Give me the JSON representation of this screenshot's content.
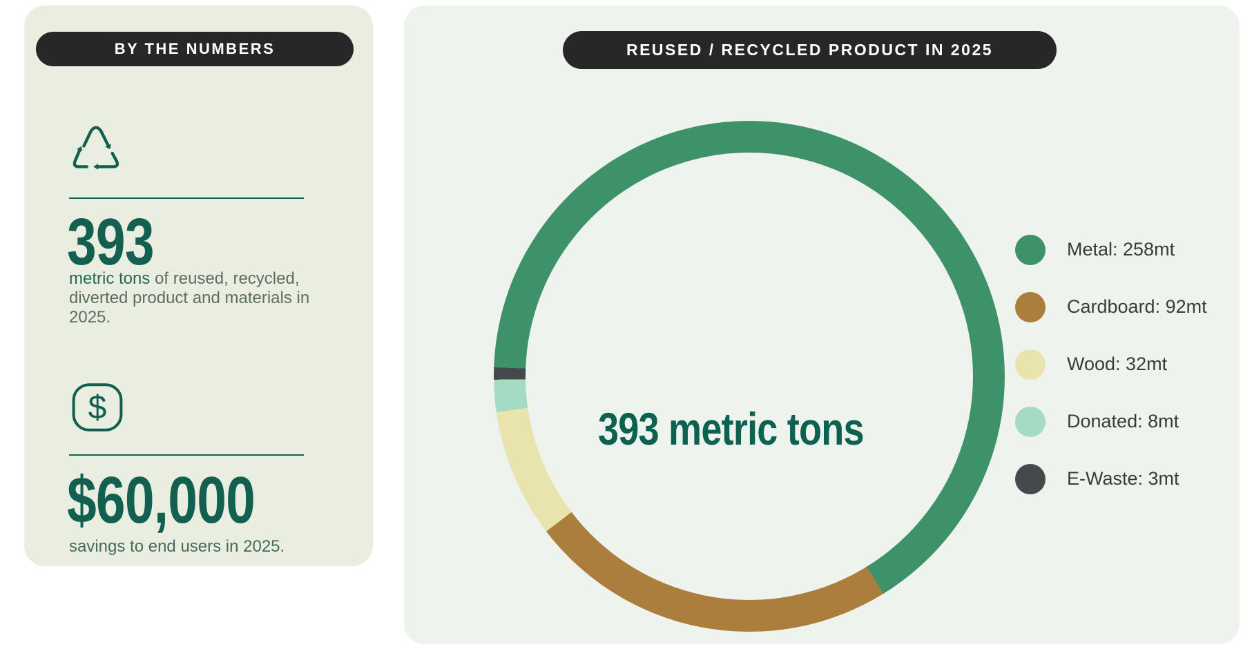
{
  "page": {
    "background": "#ffffff"
  },
  "colors": {
    "accent_deep_green": "#11604e",
    "number_green": "#136050",
    "left_panel_bg": "#e9eee1",
    "right_panel_bg": "#eff3ee",
    "pill_bg": "#272728",
    "pill_text": "#ffffff",
    "muted_text": "#5e6e62",
    "legend_text": "#3b3b3b"
  },
  "left_panel": {
    "title": "BY THE NUMBERS",
    "stats": [
      {
        "icon": "recycle-icon",
        "value": "393",
        "label_strong": "metric tons",
        "label_rest": " of reused, recycled, diverted product and materials in 2025."
      },
      {
        "icon": "dollar-icon",
        "value": "$60,000",
        "label": "savings to end users in 2025."
      }
    ]
  },
  "right_panel": {
    "title": "REUSED / RECYCLED PRODUCT IN 2025",
    "center_label": "393 metric tons"
  },
  "chart_data": {
    "type": "donut",
    "title": "REUSED / RECYCLED PRODUCT IN 2025",
    "center_label": "393 metric tons",
    "total": 393,
    "unit": "mt",
    "start_angle_deg": 272,
    "direction": "clockwise",
    "legend_position": "right",
    "ring_thickness_px": 46,
    "series": [
      {
        "name": "Metal",
        "value": 258,
        "color": "#3e9269"
      },
      {
        "name": "Cardboard",
        "value": 92,
        "color": "#ac7e3d"
      },
      {
        "name": "Wood",
        "value": 32,
        "color": "#e9e3ad"
      },
      {
        "name": "Donated",
        "value": 8,
        "color": "#a5dac3"
      },
      {
        "name": "E-Waste",
        "value": 3,
        "color": "#45494b"
      }
    ]
  }
}
